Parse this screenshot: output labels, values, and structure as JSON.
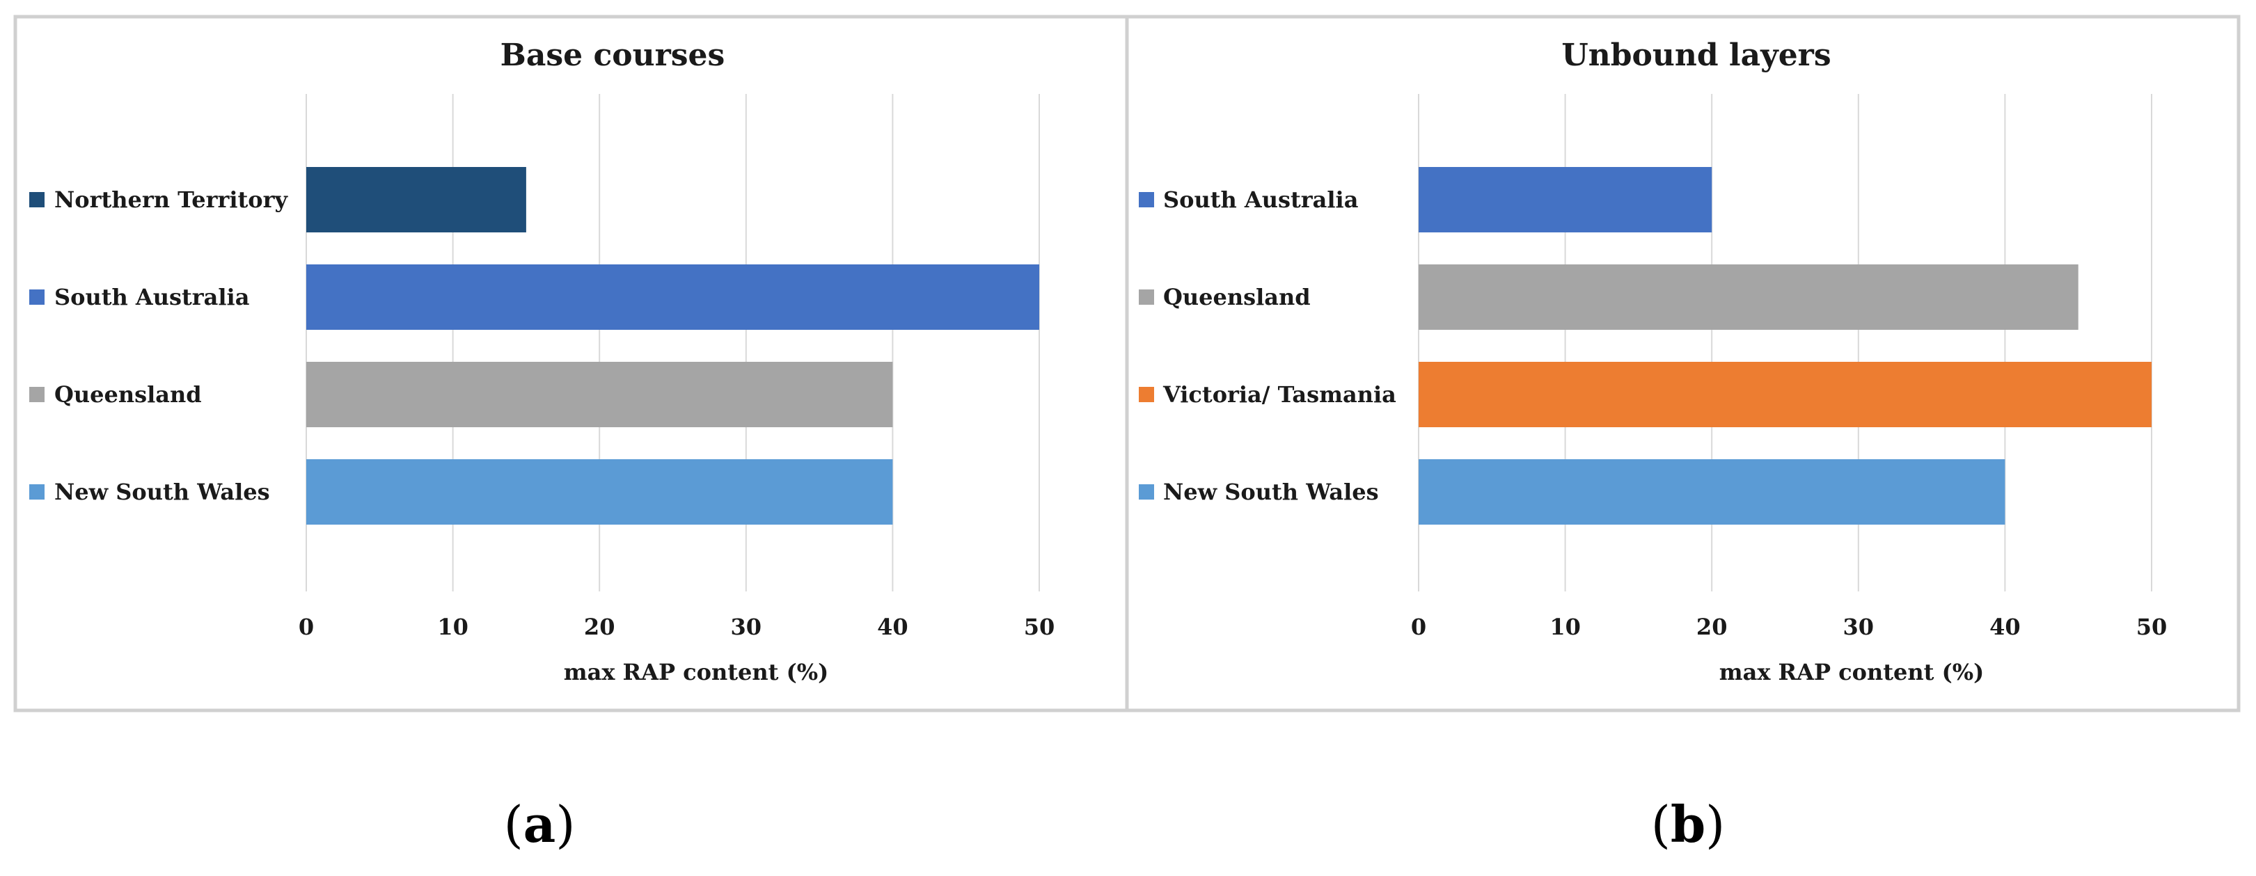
{
  "chart_data": [
    {
      "type": "bar",
      "orientation": "horizontal",
      "title": "Base courses",
      "xlabel": "max RAP content (%)",
      "ylabel": "",
      "xlim": [
        0,
        55
      ],
      "x_ticks": [
        0,
        10,
        20,
        30,
        40,
        50
      ],
      "grid": "vertical",
      "legend": "left",
      "panel_letter": "a",
      "bars": [
        {
          "label": "Northern Territory",
          "value": 15,
          "color": "#1f4e79"
        },
        {
          "label": "South Australia",
          "value": 50,
          "color": "#4472c4"
        },
        {
          "label": "Queensland",
          "value": 40,
          "color": "#a5a5a5"
        },
        {
          "label": "New South Wales",
          "value": 40,
          "color": "#5b9bd5"
        }
      ]
    },
    {
      "type": "bar",
      "orientation": "horizontal",
      "title": "Unbound layers",
      "xlabel": "max RAP content (%)",
      "ylabel": "",
      "xlim": [
        0,
        52
      ],
      "x_ticks": [
        0,
        10,
        20,
        30,
        40,
        50
      ],
      "grid": "vertical",
      "legend": "left",
      "panel_letter": "b",
      "bars": [
        {
          "label": "South Australia",
          "value": 20,
          "color": "#4472c4"
        },
        {
          "label": "Queensland",
          "value": 45,
          "color": "#a5a5a5"
        },
        {
          "label": "Victoria/ Tasmania",
          "value": 50,
          "color": "#ed7d31"
        },
        {
          "label": "New South Wales",
          "value": 40,
          "color": "#5b9bd5"
        }
      ]
    }
  ]
}
